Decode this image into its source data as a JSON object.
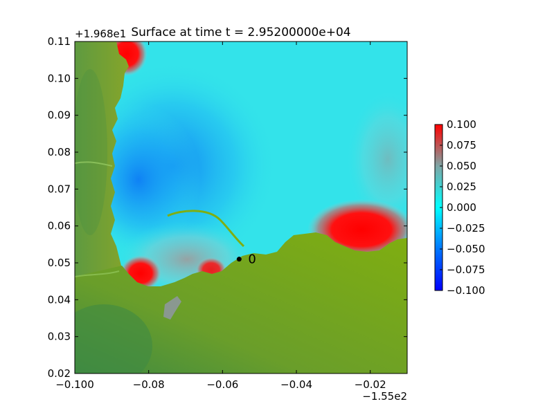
{
  "chart_data": {
    "type": "heatmap",
    "title": "Surface at time t = 2.95200000e+04",
    "x_offset_label": "−1.55e2",
    "y_offset_label": "+1.968e1",
    "xlim": [
      -0.1,
      -0.01
    ],
    "ylim": [
      0.02,
      0.11
    ],
    "x_ticks": [
      {
        "value": -0.1,
        "label": "−0.100"
      },
      {
        "value": -0.08,
        "label": "−0.08"
      },
      {
        "value": -0.06,
        "label": "−0.06"
      },
      {
        "value": -0.04,
        "label": "−0.04"
      },
      {
        "value": -0.02,
        "label": "−0.02"
      }
    ],
    "y_ticks": [
      {
        "value": 0.02,
        "label": "0.02"
      },
      {
        "value": 0.03,
        "label": "0.03"
      },
      {
        "value": 0.04,
        "label": "0.04"
      },
      {
        "value": 0.05,
        "label": "0.05"
      },
      {
        "value": 0.06,
        "label": "0.06"
      },
      {
        "value": 0.07,
        "label": "0.07"
      },
      {
        "value": 0.08,
        "label": "0.08"
      },
      {
        "value": 0.09,
        "label": "0.09"
      },
      {
        "value": 0.1,
        "label": "0.10"
      },
      {
        "value": 0.11,
        "label": "0.11"
      }
    ],
    "colorbar": {
      "range": [
        -0.1,
        0.1
      ],
      "ticks": [
        {
          "value": 0.1,
          "label": "0.100"
        },
        {
          "value": 0.075,
          "label": "0.075"
        },
        {
          "value": 0.05,
          "label": "0.050"
        },
        {
          "value": 0.025,
          "label": "0.025"
        },
        {
          "value": 0.0,
          "label": "0.000"
        },
        {
          "value": -0.025,
          "label": "−0.025"
        },
        {
          "value": -0.05,
          "label": "−0.050"
        },
        {
          "value": -0.075,
          "label": "−0.075"
        },
        {
          "value": -0.1,
          "label": "−0.100"
        }
      ],
      "colors": [
        "#0000ff",
        "#00aaff",
        "#00ffff",
        "#7fb8b8",
        "#ff0000"
      ]
    },
    "gauge_marker": {
      "x": -0.0555,
      "y": 0.051,
      "label": "0"
    },
    "colors": {
      "water_bg": "#33e3ea",
      "water_deep": "#19a8f0",
      "land": "#7fae12",
      "land_dark": "#3f8a42",
      "positive": "#ff1a1a"
    }
  }
}
